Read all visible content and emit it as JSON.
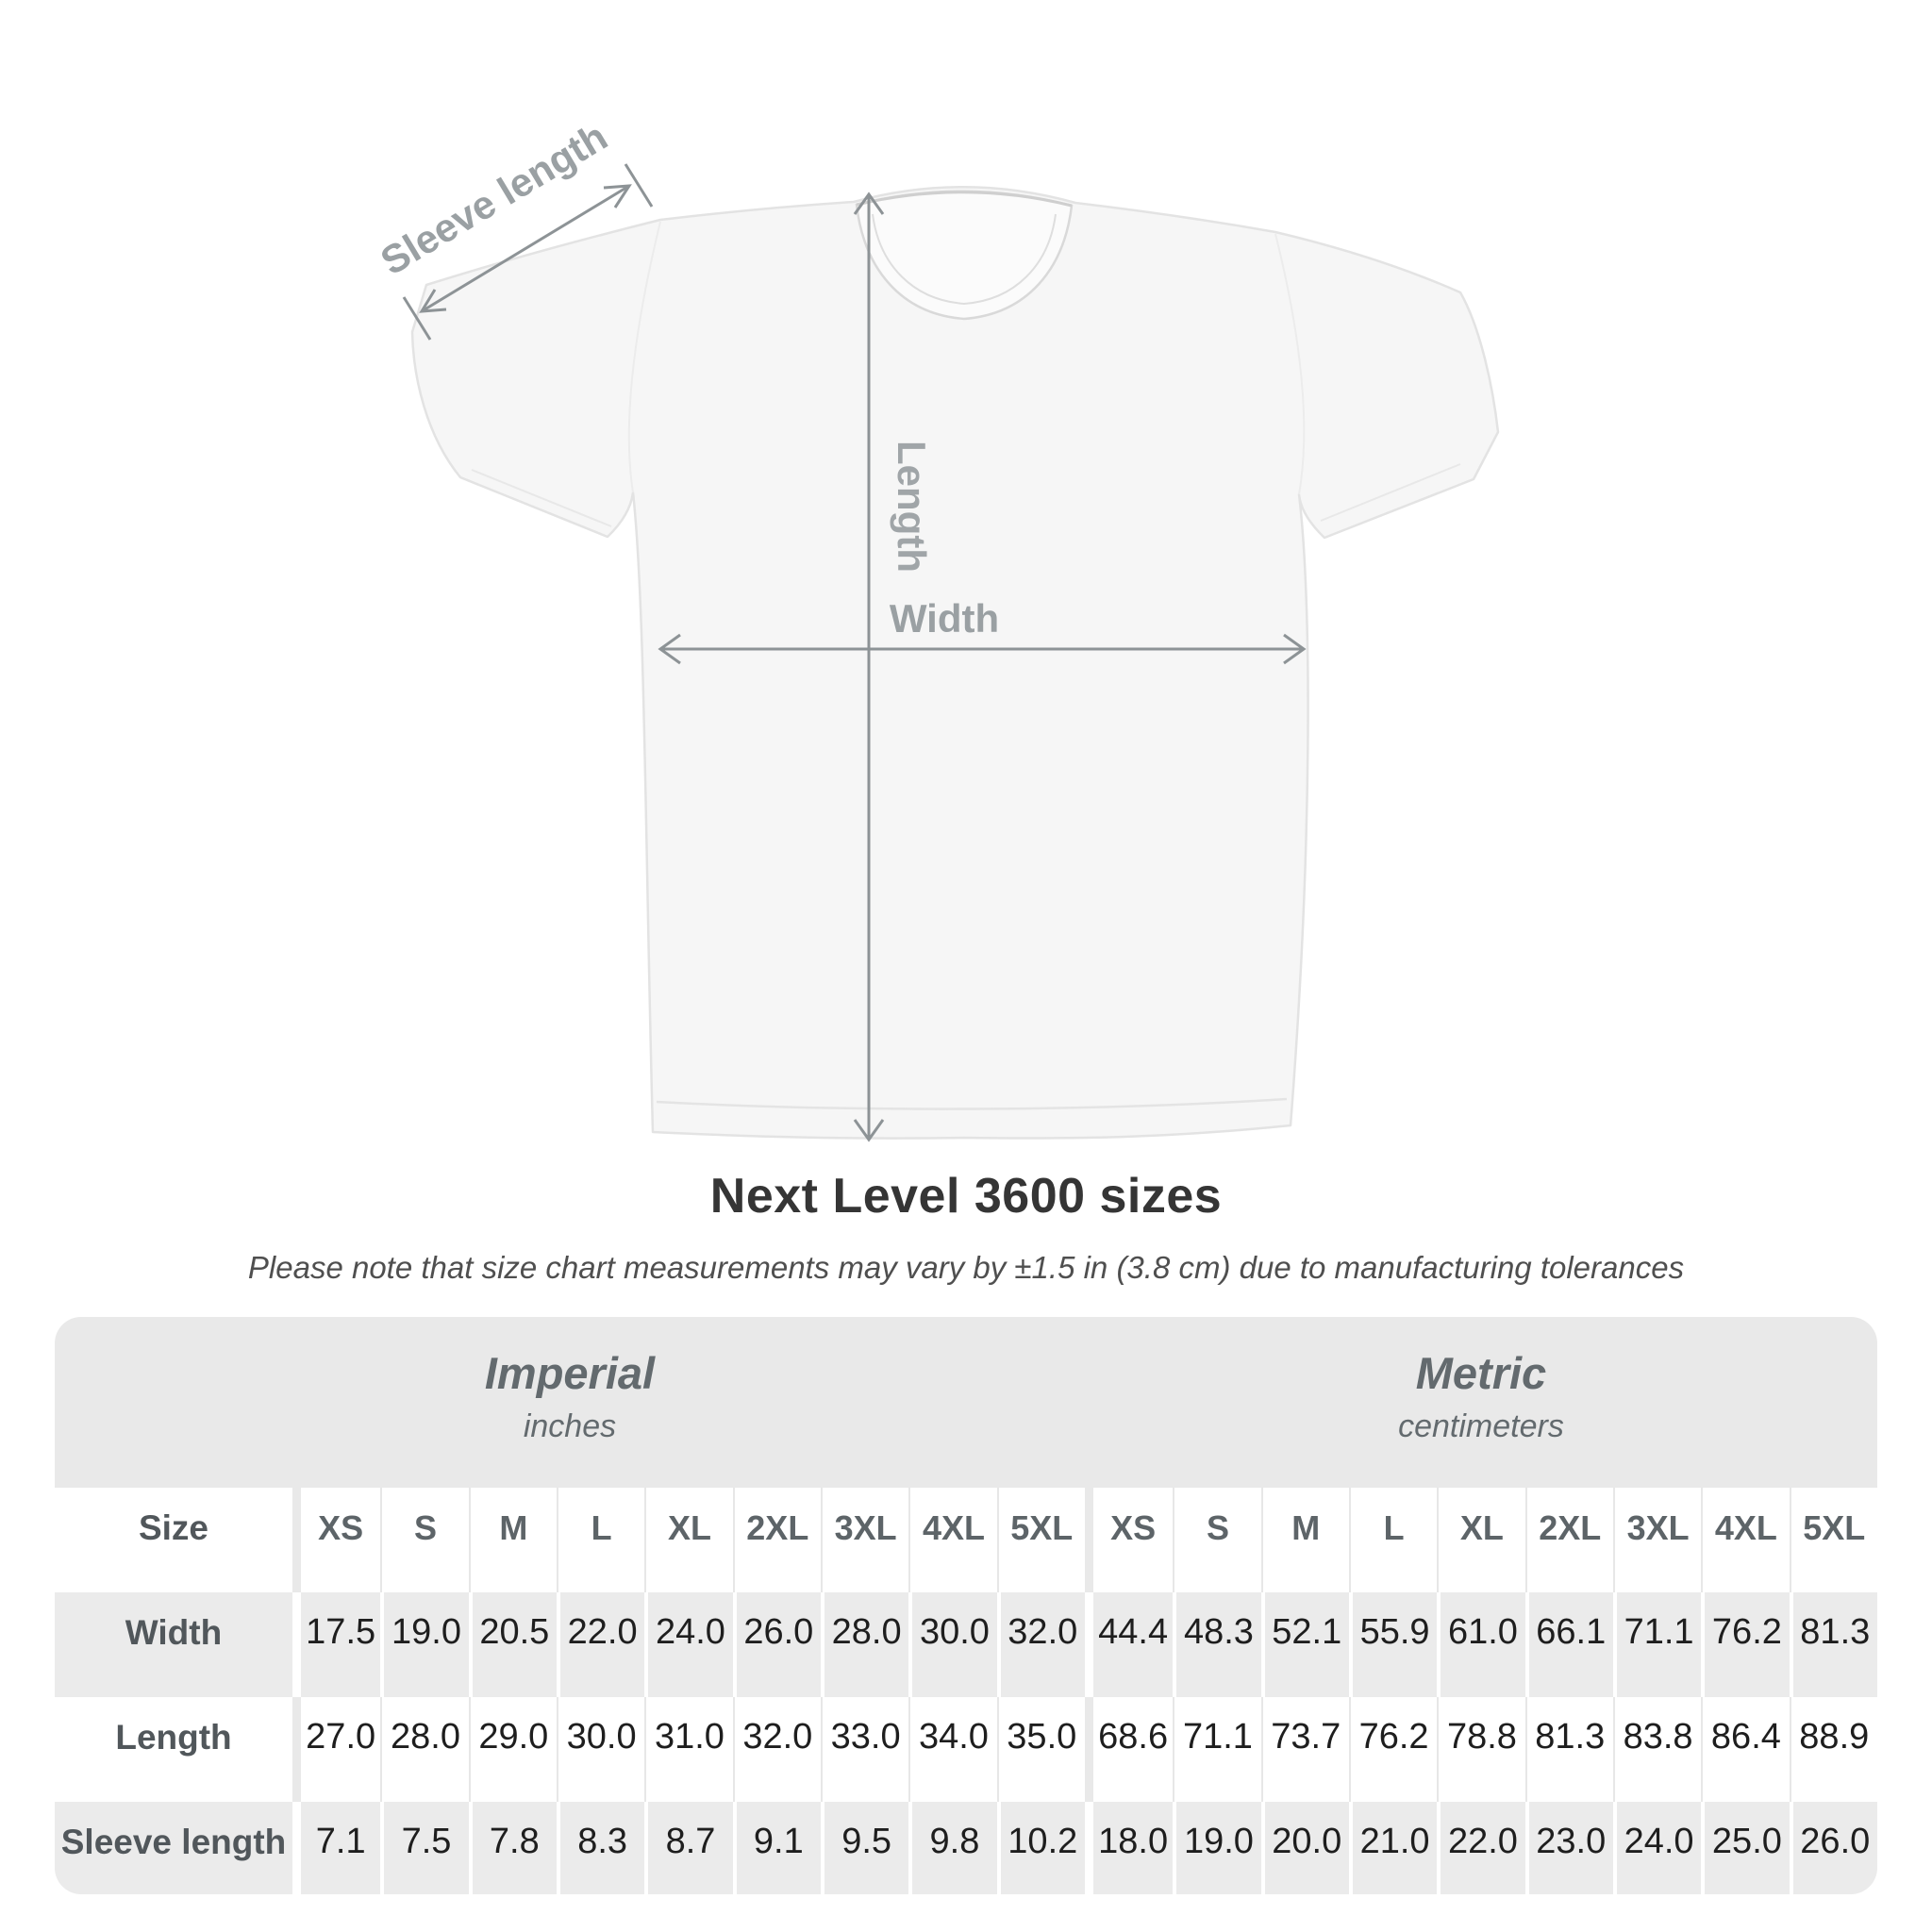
{
  "title": "Next Level 3600 sizes",
  "subtitle": "Please note that size chart measurements may vary by ±1.5 in (3.8 cm) due to manufacturing tolerances",
  "diagram": {
    "sleeve_label": "Sleeve length",
    "length_label": "Length",
    "width_label": "Width"
  },
  "table": {
    "imperial_header": {
      "title": "Imperial",
      "unit": "inches"
    },
    "metric_header": {
      "title": "Metric",
      "unit": "centimeters"
    },
    "size_label": "Size",
    "sizes": [
      "XS",
      "S",
      "M",
      "L",
      "XL",
      "2XL",
      "3XL",
      "4XL",
      "5XL"
    ],
    "rows": [
      {
        "label": "Width",
        "imperial": [
          "17.5",
          "19.0",
          "20.5",
          "22.0",
          "24.0",
          "26.0",
          "28.0",
          "30.0",
          "32.0"
        ],
        "metric": [
          "44.4",
          "48.3",
          "52.1",
          "55.9",
          "61.0",
          "66.1",
          "71.1",
          "76.2",
          "81.3"
        ]
      },
      {
        "label": "Length",
        "imperial": [
          "27.0",
          "28.0",
          "29.0",
          "30.0",
          "31.0",
          "32.0",
          "33.0",
          "34.0",
          "35.0"
        ],
        "metric": [
          "68.6",
          "71.1",
          "73.7",
          "76.2",
          "78.8",
          "81.3",
          "83.8",
          "86.4",
          "88.9"
        ]
      },
      {
        "label": "Sleeve length",
        "imperial": [
          "7.1",
          "7.5",
          "7.8",
          "8.3",
          "8.7",
          "9.1",
          "9.5",
          "9.8",
          "10.2"
        ],
        "metric": [
          "18.0",
          "19.0",
          "20.0",
          "21.0",
          "22.0",
          "23.0",
          "24.0",
          "25.0",
          "26.0"
        ]
      }
    ]
  },
  "colors": {
    "row_stripe": "#ebebeb",
    "header_bg": "#e9e9e9",
    "value_text": "#1e1e1e",
    "label_text": "#51575b",
    "annotation": "#969da0",
    "title_text": "#353535"
  }
}
